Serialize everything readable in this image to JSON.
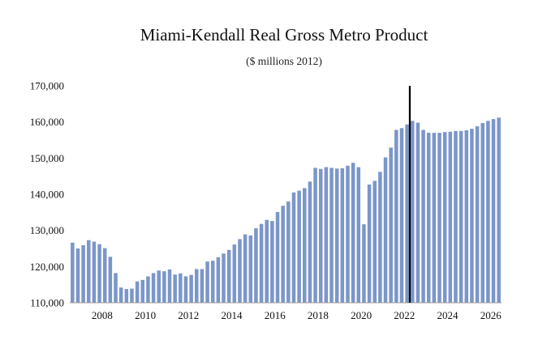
{
  "chart_data": {
    "type": "bar",
    "title": "Miami-Kendall Real Gross Metro Product",
    "subtitle": "($ millions 2012)",
    "xlabel": "",
    "ylabel": "",
    "ylim": [
      110000,
      170000
    ],
    "yticks": [
      110000,
      120000,
      130000,
      140000,
      150000,
      160000,
      170000
    ],
    "ytick_labels": [
      "110,000",
      "120,000",
      "130,000",
      "140,000",
      "150,000",
      "160,000",
      "170,000"
    ],
    "xtick_labels": [
      "2008",
      "2010",
      "2012",
      "2014",
      "2016",
      "2018",
      "2020",
      "2022",
      "2024",
      "2026"
    ],
    "start_year": 2006.5,
    "periods_per_year": 4,
    "forecast_marker": 2022.25,
    "bar_color": "#7b96c8",
    "grid": false,
    "legend": "none",
    "values": [
      126600,
      125000,
      125900,
      127300,
      126900,
      126200,
      125100,
      122700,
      118200,
      114200,
      113800,
      113900,
      115900,
      116300,
      117300,
      118200,
      118900,
      118700,
      119200,
      117800,
      118100,
      117300,
      117700,
      119300,
      119300,
      121400,
      121600,
      122600,
      123600,
      124600,
      126100,
      127600,
      128900,
      128600,
      130600,
      131800,
      132900,
      132600,
      135100,
      136800,
      138000,
      140500,
      141000,
      141700,
      143500,
      147300,
      147000,
      147500,
      147300,
      147100,
      147200,
      147900,
      148700,
      147500,
      131700,
      142700,
      143700,
      146200,
      150200,
      152900,
      157800,
      158300,
      159300,
      160300,
      159800,
      157800,
      157000,
      157000,
      157000,
      157200,
      157300,
      157500,
      157500,
      157700,
      158100,
      158800,
      159700,
      160300,
      160800,
      161200
    ]
  }
}
